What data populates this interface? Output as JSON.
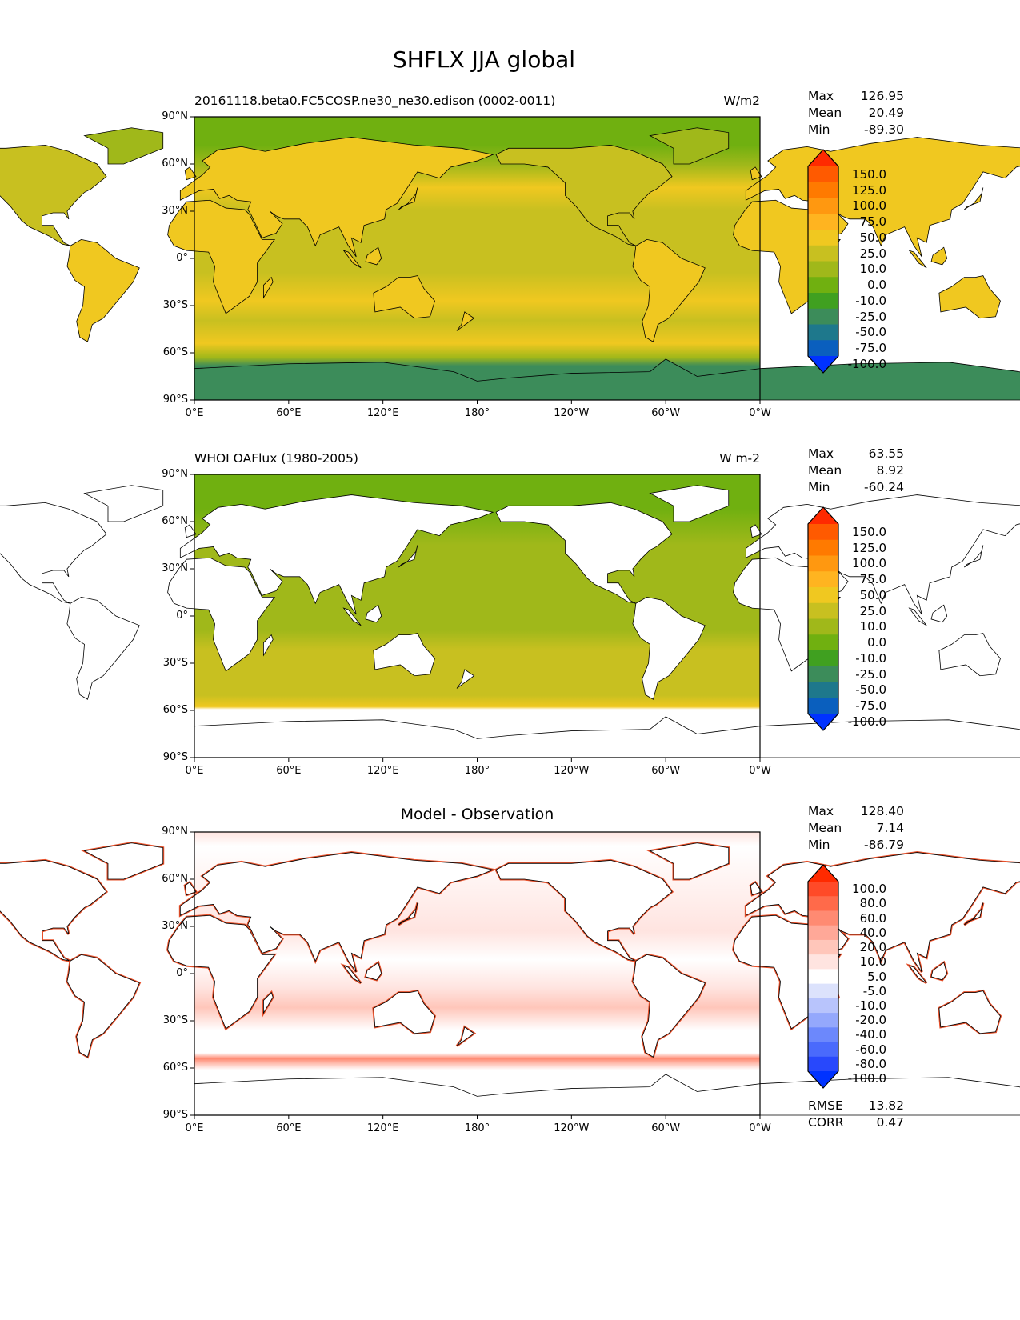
{
  "title": "SHFLX JJA global",
  "axes": {
    "yticks": [
      "90°N",
      "60°N",
      "30°N",
      "0°",
      "30°S",
      "60°S",
      "90°S"
    ],
    "xticks": [
      "0°E",
      "60°E",
      "120°E",
      "180°",
      "120°W",
      "60°W",
      "0°W"
    ]
  },
  "colormaps": {
    "main": {
      "ticks": [
        "150.0",
        "125.0",
        "100.0",
        "75.0",
        "50.0",
        "25.0",
        "10.0",
        "0.0",
        "-10.0",
        "-25.0",
        "-50.0",
        "-75.0",
        "-100.0"
      ],
      "colors": [
        "#ff2a00",
        "#ff5a00",
        "#ff7a00",
        "#ff9810",
        "#ffb420",
        "#f0c820",
        "#c8c020",
        "#a0b81a",
        "#70b010",
        "#40a020",
        "#3c8c5a",
        "#1e788c",
        "#0a5fbe",
        "#0032ff"
      ]
    },
    "diff": {
      "ticks": [
        "100.0",
        "80.0",
        "60.0",
        "40.0",
        "20.0",
        "10.0",
        "5.0",
        "-5.0",
        "-10.0",
        "-20.0",
        "-40.0",
        "-60.0",
        "-80.0",
        "-100.0"
      ],
      "colors": [
        "#ff2a00",
        "#ff4a28",
        "#ff6a4a",
        "#ff8a72",
        "#ffa898",
        "#ffc6ba",
        "#ffe4e0",
        "#ffffff",
        "#dce2fc",
        "#b8c4fc",
        "#94a8fc",
        "#6c88fc",
        "#4a6afc",
        "#2848fc",
        "#0032ff"
      ]
    }
  },
  "panels": [
    {
      "subtitle_left": "20161118.beta0.FC5COSP.ne30_ne30.edison (0002-0011)",
      "subtitle_right": "W/m2",
      "stats": [
        {
          "label": "Max",
          "value": "126.95"
        },
        {
          "label": "Mean",
          "value": "20.49"
        },
        {
          "label": "Min",
          "value": "-89.30"
        }
      ],
      "colormap": "main"
    },
    {
      "subtitle_left": "WHOI OAFlux (1980-2005)",
      "subtitle_right": "W m-2",
      "stats": [
        {
          "label": "Max",
          "value": "63.55"
        },
        {
          "label": "Mean",
          "value": "8.92"
        },
        {
          "label": "Min",
          "value": "-60.24"
        }
      ],
      "colormap": "main"
    },
    {
      "subtitle_center": "Model - Observation",
      "stats": [
        {
          "label": "Max",
          "value": "128.40"
        },
        {
          "label": "Mean",
          "value": "7.14"
        },
        {
          "label": "Min",
          "value": "-86.79"
        }
      ],
      "colormap": "diff",
      "extra_stats": [
        {
          "label": "RMSE",
          "value": "13.82"
        },
        {
          "label": "CORR",
          "value": "0.47"
        }
      ]
    }
  ]
}
